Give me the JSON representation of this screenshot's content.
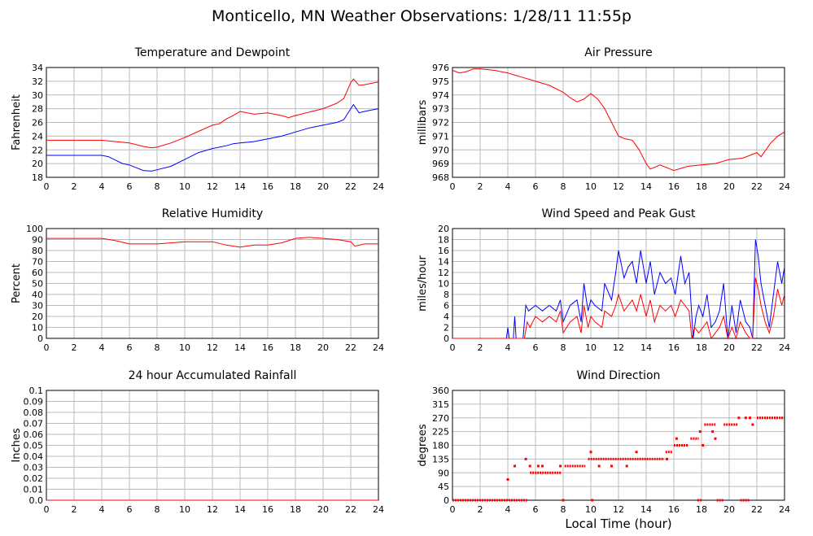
{
  "page": {
    "title": "Monticello, MN Weather Observations: 1/28/11 11:55p",
    "xaxis_title": "Local Time (hour)"
  },
  "colors": {
    "red": "#ff0000",
    "blue": "#0000ff",
    "grid": "#bbbbbb",
    "axis": "#000000"
  },
  "chart_data": [
    {
      "id": "temp",
      "type": "line",
      "title": "Temperature and Dewpoint",
      "ylabel": "Fahrenheit",
      "xlim": [
        0,
        24
      ],
      "ylim": [
        18,
        34
      ],
      "xticks": [
        0,
        2,
        4,
        6,
        8,
        10,
        12,
        14,
        16,
        18,
        20,
        22,
        24
      ],
      "yticks": [
        18,
        20,
        22,
        24,
        26,
        28,
        30,
        32,
        34
      ],
      "grid": true,
      "series": [
        {
          "color": "#ff0000",
          "x": [
            0,
            1,
            2,
            3,
            4,
            5,
            6,
            7,
            7.6,
            8,
            9,
            10,
            11,
            12,
            12.5,
            13,
            13.5,
            14,
            15,
            16,
            17,
            17.5,
            18,
            19,
            20,
            21,
            21.5,
            22,
            22.2,
            22.6,
            23,
            23.5,
            24
          ],
          "y": [
            23.4,
            23.4,
            23.4,
            23.4,
            23.4,
            23.2,
            23.0,
            22.5,
            22.3,
            22.4,
            23.0,
            23.8,
            24.7,
            25.6,
            25.8,
            26.5,
            27.0,
            27.6,
            27.2,
            27.4,
            27.0,
            26.7,
            27.0,
            27.5,
            28.0,
            28.8,
            29.5,
            31.8,
            32.3,
            31.4,
            31.5,
            31.7,
            31.9
          ]
        },
        {
          "color": "#0000ff",
          "x": [
            0,
            1,
            2,
            3,
            4,
            4.5,
            5,
            5.5,
            6,
            6.5,
            7,
            7.6,
            8,
            9,
            10,
            11,
            12,
            13,
            13.5,
            14,
            15,
            16,
            17,
            18,
            19,
            20,
            21,
            21.5,
            22,
            22.2,
            22.6,
            23,
            23.5,
            24
          ],
          "y": [
            21.2,
            21.2,
            21.2,
            21.2,
            21.2,
            21.0,
            20.5,
            20.0,
            19.8,
            19.4,
            19.0,
            18.9,
            19.1,
            19.6,
            20.6,
            21.6,
            22.2,
            22.6,
            22.9,
            23.0,
            23.2,
            23.6,
            24.0,
            24.6,
            25.2,
            25.6,
            26.0,
            26.4,
            28.0,
            28.6,
            27.4,
            27.6,
            27.8,
            28.0
          ]
        }
      ]
    },
    {
      "id": "pressure",
      "type": "line",
      "title": "Air Pressure",
      "ylabel": "millibars",
      "xlim": [
        0,
        24
      ],
      "ylim": [
        968,
        976
      ],
      "xticks": [
        0,
        2,
        4,
        6,
        8,
        10,
        12,
        14,
        16,
        18,
        20,
        22,
        24
      ],
      "yticks": [
        968,
        969,
        970,
        971,
        972,
        973,
        974,
        975,
        976
      ],
      "grid": true,
      "series": [
        {
          "color": "#ff0000",
          "x": [
            0,
            0.5,
            1,
            1.5,
            2,
            3,
            4,
            5,
            6,
            7,
            8,
            8.5,
            9,
            9.5,
            10,
            10.5,
            11,
            11.5,
            12,
            12.5,
            13,
            13.5,
            14,
            14.3,
            15,
            16,
            17,
            18,
            19,
            20,
            21,
            22,
            22.3,
            23,
            23.5,
            24
          ],
          "y": [
            975.8,
            975.6,
            975.7,
            975.9,
            975.9,
            975.8,
            975.6,
            975.3,
            975.0,
            974.7,
            974.2,
            973.8,
            973.5,
            973.7,
            974.1,
            973.7,
            973.0,
            972.0,
            971.0,
            970.8,
            970.7,
            970.0,
            969.0,
            968.6,
            968.9,
            968.5,
            968.8,
            968.9,
            969.0,
            969.3,
            969.4,
            969.8,
            969.5,
            970.5,
            971.0,
            971.3
          ]
        }
      ]
    },
    {
      "id": "humidity",
      "type": "line",
      "title": "Relative Humidity",
      "ylabel": "Percent",
      "xlim": [
        0,
        24
      ],
      "ylim": [
        0,
        100
      ],
      "xticks": [
        0,
        2,
        4,
        6,
        8,
        10,
        12,
        14,
        16,
        18,
        20,
        22,
        24
      ],
      "yticks": [
        0,
        10,
        20,
        30,
        40,
        50,
        60,
        70,
        80,
        90,
        100
      ],
      "grid": true,
      "series": [
        {
          "color": "#ff0000",
          "x": [
            0,
            2,
            4,
            5,
            6,
            7,
            8,
            9,
            10,
            11,
            12,
            13,
            14,
            15,
            16,
            17,
            18,
            19,
            20,
            21,
            21.5,
            22,
            22.3,
            23,
            24
          ],
          "y": [
            91,
            91,
            91,
            89,
            86,
            86,
            86,
            87,
            88,
            88,
            88,
            85,
            83,
            85,
            85,
            87,
            91,
            92,
            91,
            90,
            89,
            88,
            84,
            86,
            86
          ]
        }
      ]
    },
    {
      "id": "wind",
      "type": "line",
      "title": "Wind Speed and Peak Gust",
      "ylabel": "miles/hour",
      "xlim": [
        0,
        24
      ],
      "ylim": [
        0,
        20
      ],
      "xticks": [
        0,
        2,
        4,
        6,
        8,
        10,
        12,
        14,
        16,
        18,
        20,
        22,
        24
      ],
      "yticks": [
        0,
        2,
        4,
        6,
        8,
        10,
        12,
        14,
        16,
        18,
        20
      ],
      "grid": true,
      "series": [
        {
          "color": "#0000ff",
          "x": [
            0,
            3.9,
            4.0,
            4.1,
            4.4,
            4.5,
            4.6,
            5.1,
            5.3,
            5.5,
            6.0,
            6.5,
            7.0,
            7.5,
            7.8,
            8.0,
            8.5,
            9.0,
            9.3,
            9.5,
            9.8,
            10.0,
            10.3,
            10.8,
            11.0,
            11.5,
            11.8,
            12.0,
            12.4,
            12.7,
            13.0,
            13.3,
            13.6,
            14.0,
            14.3,
            14.6,
            15.0,
            15.4,
            15.8,
            16.1,
            16.5,
            16.8,
            17.1,
            17.4,
            17.6,
            17.8,
            18.1,
            18.4,
            18.7,
            19.0,
            19.3,
            19.6,
            19.9,
            20.2,
            20.5,
            20.8,
            21.2,
            21.5,
            21.7,
            21.9,
            22.1,
            22.3,
            22.6,
            22.9,
            23.2,
            23.5,
            23.8,
            24
          ],
          "y": [
            0,
            0,
            2,
            0,
            0,
            4,
            0,
            0,
            6,
            5,
            6,
            5,
            6,
            5,
            7,
            3,
            6,
            7,
            3,
            10,
            5,
            7,
            6,
            5,
            10,
            7,
            12,
            16,
            11,
            13,
            14,
            10,
            16,
            10,
            14,
            8,
            12,
            10,
            11,
            8,
            15,
            10,
            12,
            0,
            4,
            6,
            4,
            8,
            2,
            3,
            5,
            10,
            0,
            6,
            1,
            7,
            3,
            2,
            0,
            18,
            15,
            10,
            6,
            2,
            8,
            14,
            10,
            13
          ]
        },
        {
          "color": "#ff0000",
          "x": [
            0,
            5.2,
            5.4,
            5.6,
            6.0,
            6.5,
            7.0,
            7.5,
            7.8,
            8.0,
            8.5,
            9.0,
            9.3,
            9.5,
            9.8,
            10.0,
            10.3,
            10.8,
            11.0,
            11.5,
            11.8,
            12.0,
            12.4,
            12.7,
            13.0,
            13.3,
            13.6,
            14.0,
            14.3,
            14.6,
            15.0,
            15.4,
            15.8,
            16.1,
            16.5,
            16.8,
            17.1,
            17.3,
            17.5,
            17.8,
            18.1,
            18.4,
            18.7,
            19.0,
            19.3,
            19.6,
            19.9,
            20.2,
            20.5,
            20.8,
            21.2,
            21.5,
            21.7,
            21.9,
            22.1,
            22.3,
            22.6,
            22.9,
            23.2,
            23.5,
            23.8,
            24
          ],
          "y": [
            0,
            0,
            3,
            2,
            4,
            3,
            4,
            3,
            5,
            1,
            3,
            4,
            1,
            6,
            2,
            4,
            3,
            2,
            5,
            4,
            6,
            8,
            5,
            6,
            7,
            5,
            8,
            4,
            7,
            3,
            6,
            5,
            6,
            4,
            7,
            6,
            5,
            0,
            2,
            1,
            2,
            3,
            0,
            1,
            2,
            4,
            0,
            2,
            0,
            3,
            1,
            0,
            0,
            11,
            9,
            6,
            3,
            1,
            4,
            9,
            6,
            8
          ]
        }
      ]
    },
    {
      "id": "rain",
      "type": "line",
      "title": "24 hour Accumulated Rainfall",
      "ylabel": "Inches",
      "xlim": [
        0,
        24
      ],
      "ylim": [
        0,
        0.1
      ],
      "xticks": [
        0,
        2,
        4,
        6,
        8,
        10,
        12,
        14,
        16,
        18,
        20,
        22,
        24
      ],
      "yticks": [
        0.0,
        0.01,
        0.02,
        0.03,
        0.04,
        0.05,
        0.06,
        0.07,
        0.08,
        0.09,
        0.1
      ],
      "ytick_labels": [
        "0.0",
        "0.01",
        "0.02",
        "0.03",
        "0.04",
        "0.05",
        "0.06",
        "0.07",
        "0.08",
        "0.09",
        "0.1"
      ],
      "grid": true,
      "series": [
        {
          "color": "#ff0000",
          "x": [
            0,
            24
          ],
          "y": [
            0,
            0
          ]
        }
      ]
    },
    {
      "id": "direction",
      "type": "scatter",
      "title": "Wind Direction",
      "ylabel": "degrees",
      "xlim": [
        0,
        24
      ],
      "ylim": [
        0,
        360
      ],
      "xticks": [
        0,
        2,
        4,
        6,
        8,
        10,
        12,
        14,
        16,
        18,
        20,
        22,
        24
      ],
      "yticks": [
        0,
        45,
        90,
        135,
        180,
        225,
        270,
        315,
        360
      ],
      "grid": true,
      "segments": [
        {
          "x0": 0,
          "x1": 5.4,
          "y": 0
        },
        {
          "x0": 5.6,
          "x1": 7.9,
          "y": 90
        },
        {
          "x0": 8.1,
          "x1": 9.6,
          "y": 112
        },
        {
          "x0": 9.8,
          "x1": 15.3,
          "y": 135
        },
        {
          "x0": 15.4,
          "x1": 15.9,
          "y": 158
        },
        {
          "x0": 16.0,
          "x1": 17.0,
          "y": 180
        },
        {
          "x0": 17.2,
          "x1": 17.8,
          "y": 202
        },
        {
          "x0": 18.2,
          "x1": 19.0,
          "y": 248
        },
        {
          "x0": 19.6,
          "x1": 20.6,
          "y": 248
        },
        {
          "x0": 22.0,
          "x1": 24.0,
          "y": 270
        },
        {
          "x0": 17.7,
          "x1": 18.0,
          "y": 0
        },
        {
          "x0": 19.1,
          "x1": 19.6,
          "y": 0
        },
        {
          "x0": 20.8,
          "x1": 21.5,
          "y": 0
        }
      ],
      "points": [
        {
          "x": 4.0,
          "y": 68
        },
        {
          "x": 4.5,
          "y": 112
        },
        {
          "x": 5.3,
          "y": 135
        },
        {
          "x": 5.6,
          "y": 112
        },
        {
          "x": 6.2,
          "y": 112
        },
        {
          "x": 6.5,
          "y": 112
        },
        {
          "x": 7.8,
          "y": 112
        },
        {
          "x": 8.0,
          "y": 0
        },
        {
          "x": 10.0,
          "y": 158
        },
        {
          "x": 10.1,
          "y": 0
        },
        {
          "x": 10.6,
          "y": 112
        },
        {
          "x": 11.5,
          "y": 112
        },
        {
          "x": 12.6,
          "y": 112
        },
        {
          "x": 13.3,
          "y": 158
        },
        {
          "x": 15.5,
          "y": 135
        },
        {
          "x": 16.2,
          "y": 202
        },
        {
          "x": 17.9,
          "y": 225
        },
        {
          "x": 18.1,
          "y": 180
        },
        {
          "x": 18.8,
          "y": 225
        },
        {
          "x": 19.0,
          "y": 202
        },
        {
          "x": 20.7,
          "y": 270
        },
        {
          "x": 21.2,
          "y": 270
        },
        {
          "x": 21.7,
          "y": 248
        },
        {
          "x": 21.5,
          "y": 270
        }
      ]
    }
  ]
}
